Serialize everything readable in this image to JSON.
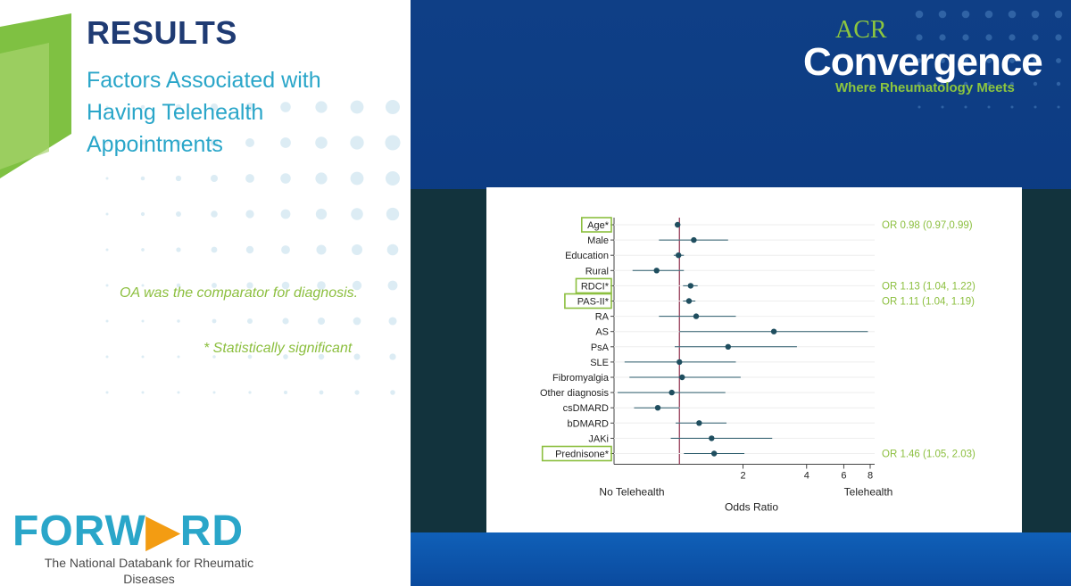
{
  "slide": {
    "title": "RESULTS",
    "subtitle": "Factors Associated with Having Telehealth Appointments",
    "note_comparator": "OA was the comparator for diagnosis.",
    "note_significant": "* Statistically significant",
    "brand_left": "FORWARD",
    "brand_left_a": "FORW",
    "brand_left_b": "RD",
    "brand_left_sub": "The National Databank for Rheumatic Diseases",
    "brand_right_top": "ACR",
    "brand_right_main": "Convergence",
    "brand_right_tag": "Where Rheumatology Meets"
  },
  "colors": {
    "navy": "#1f3b73",
    "teal": "#2aa6c9",
    "green": "#8cbf3f",
    "orange": "#f39c12",
    "point": "#1f4e5f",
    "ref_line": "#8e2c4a",
    "panel_blue": "#0c3b82",
    "panel_dark": "#12333d"
  },
  "chart_data": {
    "type": "forest",
    "xlabel": "Odds Ratio",
    "x_left_label": "No Telehealth",
    "x_right_label": "Telehealth",
    "x_scale": "log",
    "x_ticks": [
      2,
      4,
      6,
      8
    ],
    "reference_line": 1,
    "rows": [
      {
        "label": "Age*",
        "or": 0.98,
        "lo": 0.97,
        "hi": 0.99,
        "significant": true,
        "annotation": "OR 0.98 (0.97,0.99)"
      },
      {
        "label": "Male",
        "or": 1.17,
        "lo": 0.8,
        "hi": 1.7,
        "significant": false,
        "annotation": ""
      },
      {
        "label": "Education",
        "or": 0.99,
        "lo": 0.94,
        "hi": 1.05,
        "significant": false,
        "annotation": ""
      },
      {
        "label": "Rural",
        "or": 0.78,
        "lo": 0.6,
        "hi": 1.05,
        "significant": false,
        "annotation": ""
      },
      {
        "label": "RDCI*",
        "or": 1.13,
        "lo": 1.04,
        "hi": 1.22,
        "significant": true,
        "annotation": "OR 1.13 (1.04, 1.22)"
      },
      {
        "label": "PAS-II*",
        "or": 1.11,
        "lo": 1.04,
        "hi": 1.19,
        "significant": true,
        "annotation": "OR 1.11 (1.04, 1.19)"
      },
      {
        "label": "RA",
        "or": 1.2,
        "lo": 0.8,
        "hi": 1.85,
        "significant": false,
        "annotation": ""
      },
      {
        "label": "AS",
        "or": 2.8,
        "lo": 1.0,
        "hi": 7.8,
        "significant": false,
        "annotation": ""
      },
      {
        "label": "PsA",
        "or": 1.7,
        "lo": 0.95,
        "hi": 3.6,
        "significant": false,
        "annotation": ""
      },
      {
        "label": "SLE",
        "or": 1.0,
        "lo": 0.55,
        "hi": 1.85,
        "significant": false,
        "annotation": ""
      },
      {
        "label": "Fibromyalgia",
        "or": 1.03,
        "lo": 0.58,
        "hi": 1.95,
        "significant": false,
        "annotation": ""
      },
      {
        "label": "Other diagnosis",
        "or": 0.92,
        "lo": 0.51,
        "hi": 1.65,
        "significant": false,
        "annotation": ""
      },
      {
        "label": "csDMARD",
        "or": 0.79,
        "lo": 0.61,
        "hi": 1.0,
        "significant": false,
        "annotation": ""
      },
      {
        "label": "bDMARD",
        "or": 1.24,
        "lo": 0.96,
        "hi": 1.67,
        "significant": false,
        "annotation": ""
      },
      {
        "label": "JAKi",
        "or": 1.42,
        "lo": 0.91,
        "hi": 2.75,
        "significant": false,
        "annotation": ""
      },
      {
        "label": "Prednisone*",
        "or": 1.46,
        "lo": 1.05,
        "hi": 2.03,
        "significant": true,
        "annotation": "OR 1.46 (1.05, 2.03)"
      }
    ]
  }
}
